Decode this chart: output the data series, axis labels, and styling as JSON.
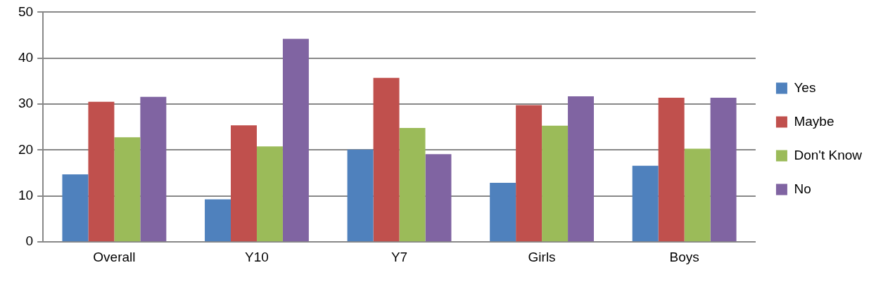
{
  "chart_data": {
    "type": "bar",
    "categories": [
      "Overall",
      "Y10",
      "Y7",
      "Girls",
      "Boys"
    ],
    "series": [
      {
        "name": "Yes",
        "color": "#4f81bd",
        "values": [
          14.7,
          9.3,
          20.1,
          12.9,
          16.6
        ]
      },
      {
        "name": "Maybe",
        "color": "#c0504d",
        "values": [
          30.5,
          25.4,
          35.7,
          29.8,
          31.4
        ]
      },
      {
        "name": "Don't Know",
        "color": "#9bbb59",
        "values": [
          22.8,
          20.8,
          24.8,
          25.3,
          20.3
        ]
      },
      {
        "name": "No",
        "color": "#8064a2",
        "values": [
          31.6,
          44.2,
          19.1,
          31.7,
          31.4
        ]
      }
    ],
    "ylim": [
      0,
      50
    ],
    "yticks": [
      0,
      10,
      20,
      30,
      40,
      50
    ],
    "grid": "y",
    "legend": "right"
  }
}
